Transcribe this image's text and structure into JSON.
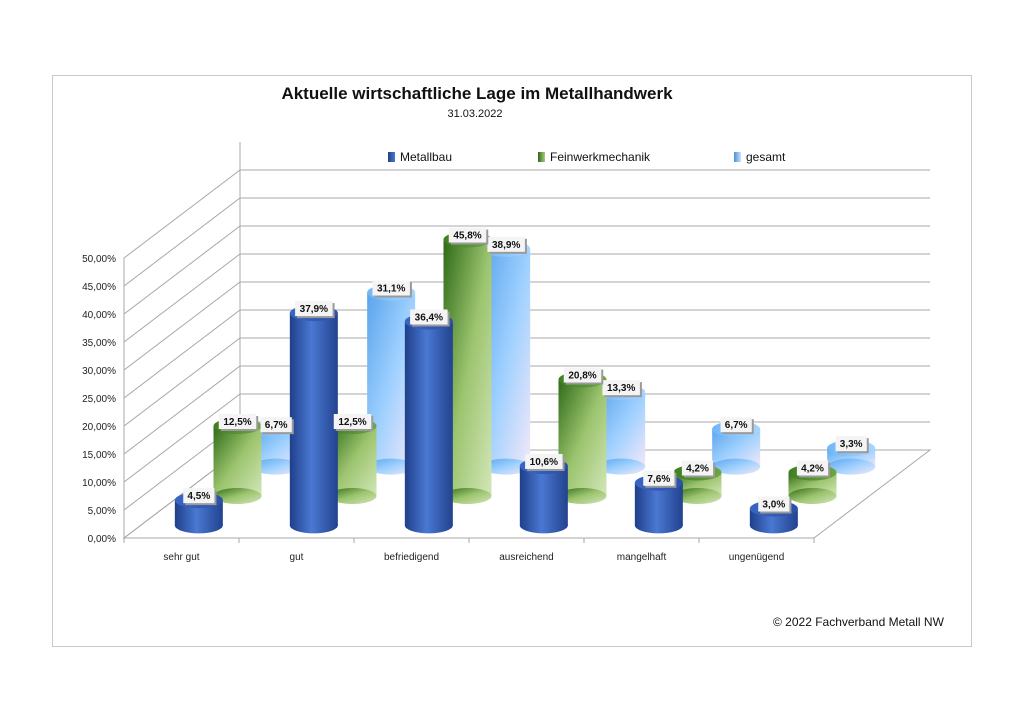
{
  "chart_data": {
    "type": "bar",
    "subtype": "3d-cylinder",
    "title": "Aktuelle wirtschaftliche Lage im Metallhandwerk",
    "subtitle": "31.03.2022",
    "categories": [
      "sehr gut",
      "gut",
      "befriedigend",
      "ausreichend",
      "mangelhaft",
      "ungenügend"
    ],
    "series": [
      {
        "name": "Metallbau",
        "values": [
          4.5,
          37.9,
          36.4,
          10.6,
          7.6,
          3.0
        ],
        "labels": [
          "4,5%",
          "37,9%",
          "36,4%",
          "10,6%",
          "7,6%",
          "3,0%"
        ],
        "color": "#3a64c0"
      },
      {
        "name": "Feinwerkmechanik",
        "values": [
          12.5,
          12.5,
          45.8,
          20.8,
          4.2,
          4.2
        ],
        "labels": [
          "12,5%",
          "12,5%",
          "45,8%",
          "20,8%",
          "4,2%",
          "4,2%"
        ],
        "color": "#5f9a35"
      },
      {
        "name": "gesamt",
        "values": [
          6.7,
          31.1,
          38.9,
          13.3,
          6.7,
          3.3
        ],
        "labels": [
          "6,7%",
          "31,1%",
          "38,9%",
          "13,3%",
          "6,7%",
          "3,3%"
        ],
        "color": "#6fb3f0"
      }
    ],
    "yticks": [
      "0,00%",
      "5,00%",
      "10,00%",
      "15,00%",
      "20,00%",
      "25,00%",
      "30,00%",
      "35,00%",
      "40,00%",
      "45,00%",
      "50,00%"
    ],
    "ylim": [
      0,
      50
    ],
    "grid": true,
    "legend": "top"
  },
  "footer": "© 2022 Fachverband Metall NW"
}
